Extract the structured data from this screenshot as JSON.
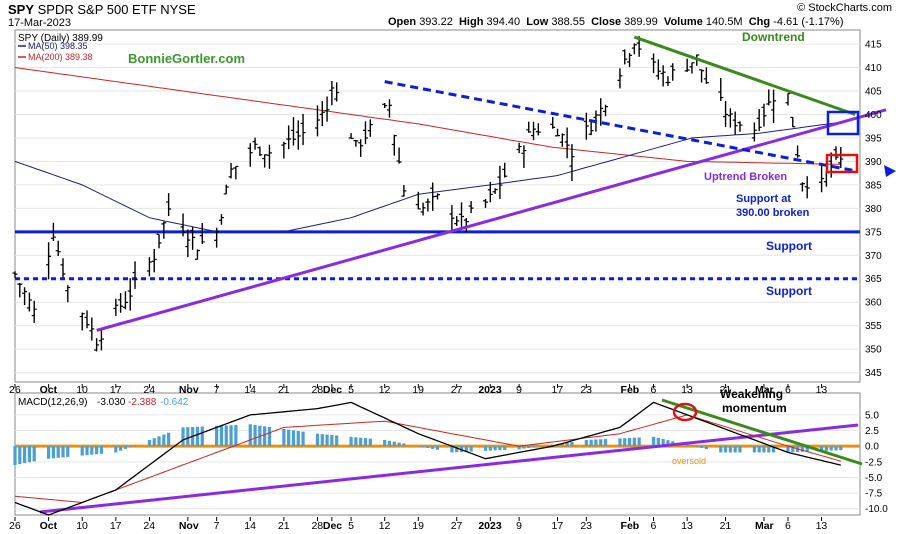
{
  "header": {
    "ticker": "SPY",
    "name": "SPDR S&P 500 ETF",
    "exchange": "NYSE",
    "date": "17-Mar-2023",
    "open_label": "Open",
    "open": "393.22",
    "high_label": "High",
    "high": "394.40",
    "low_label": "Low",
    "low": "388.55",
    "close_label": "Close",
    "close": "389.99",
    "volume_label": "Volume",
    "volume": "140.5M",
    "chg_label": "Chg",
    "chg": "-4.61 (-1.17%)",
    "watermark": "© StockCharts.com"
  },
  "legend": {
    "price": "SPY (Daily) 389.99",
    "ma50": "MA(50) 398.35",
    "ma200": "MA(200) 389.38"
  },
  "annotations": {
    "brand": "BonnieGortler.com",
    "downtrend": "Downtrend",
    "uptrend_broken": "Uptrend Broken",
    "support_at_1": "Support at",
    "support_at_2": "390.00 broken",
    "support_1": "Support",
    "support_2": "Support",
    "weakening_1": "Weakening",
    "weakening_2": "momentum",
    "oversold": "oversold"
  },
  "macd_legend": {
    "label": "MACD(12,26,9)",
    "macd": "-3.030",
    "signal": "-2.388",
    "hist": "-0.642"
  },
  "colors": {
    "ma50": "#1a237e",
    "ma200": "#c62828",
    "trend_purple": "#8a2be2",
    "trend_green": "#3a8a1c",
    "support_blue": "#0a1fd6",
    "brand_green": "#3a9a2a",
    "hist": "#4a9fd4",
    "oversold": "#f0900a",
    "box_red": "#e01010"
  },
  "chart_data": {
    "type": "ohlc",
    "x_tick_labels": [
      "26",
      "Oct",
      "10",
      "17",
      "24",
      "Nov",
      "7",
      "14",
      "21",
      "28",
      "Dec",
      "5",
      "12",
      "19",
      "27",
      "2023",
      "9",
      "17",
      "23",
      "Feb",
      "6",
      "13",
      "21",
      "Mar",
      "6",
      "13"
    ],
    "price_axis": {
      "ylim": [
        343,
        418
      ],
      "ticks": [
        345,
        350,
        355,
        360,
        365,
        370,
        375,
        380,
        385,
        390,
        395,
        400,
        405,
        410,
        415
      ]
    },
    "macd_axis": {
      "ylim": [
        -11,
        8.5
      ],
      "ticks": [
        5.0,
        2.5,
        0.0,
        -2.5,
        -5.0,
        -7.5,
        -10.0
      ]
    },
    "support_levels": [
      375,
      365
    ],
    "price_path": [
      [
        "2022-09-26",
        366
      ],
      [
        "2022-09-30",
        358
      ],
      [
        "2022-10-04",
        375
      ],
      [
        "2022-10-07",
        363
      ],
      [
        "2022-10-10",
        358
      ],
      [
        "2022-10-13",
        352
      ],
      [
        "2022-10-17",
        358
      ],
      [
        "2022-10-20",
        362
      ],
      [
        "2022-10-25",
        370
      ],
      [
        "2022-10-28",
        380
      ],
      [
        "2022-11-03",
        372
      ],
      [
        "2022-11-07",
        375
      ],
      [
        "2022-11-10",
        388
      ],
      [
        "2022-11-15",
        393
      ],
      [
        "2022-11-18",
        392
      ],
      [
        "2022-11-25",
        396
      ],
      [
        "2022-11-30",
        401
      ],
      [
        "2022-12-01",
        407
      ],
      [
        "2022-12-06",
        393
      ],
      [
        "2022-12-13",
        402
      ],
      [
        "2022-12-16",
        384
      ],
      [
        "2022-12-20",
        380
      ],
      [
        "2022-12-23",
        382
      ],
      [
        "2022-12-28",
        377
      ],
      [
        "2023-01-03",
        382
      ],
      [
        "2023-01-06",
        387
      ],
      [
        "2023-01-12",
        397
      ],
      [
        "2023-01-17",
        397
      ],
      [
        "2023-01-20",
        392
      ],
      [
        "2023-01-26",
        401
      ],
      [
        "2023-02-02",
        416
      ],
      [
        "2023-02-06",
        410
      ],
      [
        "2023-02-09",
        408
      ],
      [
        "2023-02-15",
        412
      ],
      [
        "2023-02-17",
        407
      ],
      [
        "2023-02-22",
        399
      ],
      [
        "2023-02-27",
        397
      ],
      [
        "2023-03-03",
        404
      ],
      [
        "2023-03-06",
        404
      ],
      [
        "2023-03-09",
        386
      ],
      [
        "2023-03-13",
        385
      ],
      [
        "2023-03-15",
        389
      ],
      [
        "2023-03-17",
        389.99
      ]
    ],
    "ma50_path": [
      [
        "2022-09-26",
        390
      ],
      [
        "2022-10-10",
        385
      ],
      [
        "2022-10-24",
        378
      ],
      [
        "2022-11-07",
        375
      ],
      [
        "2022-11-21",
        375
      ],
      [
        "2022-12-05",
        378
      ],
      [
        "2022-12-19",
        383
      ],
      [
        "2023-01-03",
        385
      ],
      [
        "2023-01-17",
        387
      ],
      [
        "2023-01-31",
        391
      ],
      [
        "2023-02-14",
        395
      ],
      [
        "2023-02-28",
        396
      ],
      [
        "2023-03-17",
        398.35
      ]
    ],
    "ma200_path": [
      [
        "2022-09-26",
        410
      ],
      [
        "2022-10-24",
        406
      ],
      [
        "2022-11-21",
        402
      ],
      [
        "2022-12-19",
        398
      ],
      [
        "2023-01-16",
        393
      ],
      [
        "2023-02-13",
        390
      ],
      [
        "2023-03-17",
        389.38
      ]
    ],
    "trendlines": [
      {
        "name": "Uptrend",
        "from": [
          "2022-10-13",
          354
        ],
        "to": [
          "2023-03-20",
          398
        ]
      },
      {
        "name": "Downtrend dashed",
        "from": [
          "2022-12-12",
          407
        ],
        "to": [
          "2023-03-20",
          388
        ]
      },
      {
        "name": "Downtrend",
        "from": [
          "2023-02-02",
          416.5
        ],
        "to": [
          "2023-03-20",
          400
        ]
      }
    ],
    "macd_path": [
      [
        "2022-09-26",
        -9
      ],
      [
        "2022-10-03",
        -11
      ],
      [
        "2022-10-17",
        -7
      ],
      [
        "2022-10-31",
        1
      ],
      [
        "2022-11-14",
        5
      ],
      [
        "2022-11-28",
        6
      ],
      [
        "2022-12-05",
        7
      ],
      [
        "2022-12-19",
        2
      ],
      [
        "2023-01-02",
        -2
      ],
      [
        "2023-01-16",
        0
      ],
      [
        "2023-01-30",
        3
      ],
      [
        "2023-02-06",
        7
      ],
      [
        "2023-02-20",
        3
      ],
      [
        "2023-03-06",
        -1
      ],
      [
        "2023-03-17",
        -3.03
      ]
    ],
    "signal_path": [
      [
        "2022-09-26",
        -8
      ],
      [
        "2022-10-10",
        -9
      ],
      [
        "2022-10-31",
        -3
      ],
      [
        "2022-11-21",
        3
      ],
      [
        "2022-12-12",
        4
      ],
      [
        "2023-01-09",
        0
      ],
      [
        "2023-01-30",
        2
      ],
      [
        "2023-02-13",
        5
      ],
      [
        "2023-03-06",
        0
      ],
      [
        "2023-03-17",
        -2.388
      ]
    ],
    "histogram_path": [
      [
        "2022-09-26",
        -3
      ],
      [
        "2022-10-03",
        -2
      ],
      [
        "2022-10-17",
        -1
      ],
      [
        "2022-10-31",
        3
      ],
      [
        "2022-11-14",
        3.5
      ],
      [
        "2022-11-28",
        2
      ],
      [
        "2022-12-12",
        1
      ],
      [
        "2022-12-26",
        -1
      ],
      [
        "2023-01-09",
        -0.5
      ],
      [
        "2023-01-23",
        1
      ],
      [
        "2023-02-06",
        1.5
      ],
      [
        "2023-02-20",
        -1
      ],
      [
        "2023-03-06",
        -1
      ],
      [
        "2023-03-17",
        -0.642
      ]
    ]
  }
}
